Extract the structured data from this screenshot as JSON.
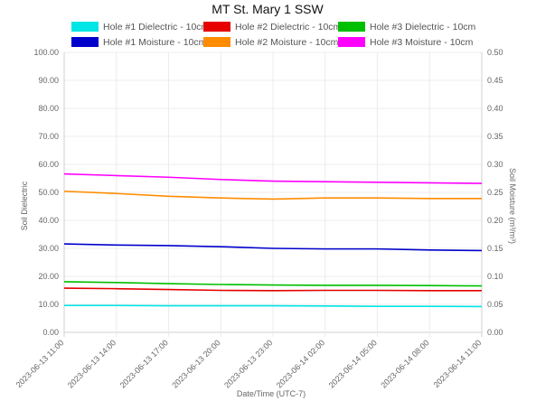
{
  "chart_data": {
    "type": "line",
    "title": "MT St. Mary 1 SSW",
    "xlabel": "Date/Time (UTC-7)",
    "ylabel": "Soil Dielectric",
    "y2label": "Soil Moisture (m³/m³)",
    "ylim": [
      0,
      100
    ],
    "y2lim": [
      0,
      0.5
    ],
    "y_ticks": [
      "0.00",
      "10.00",
      "20.00",
      "30.00",
      "40.00",
      "50.00",
      "60.00",
      "70.00",
      "80.00",
      "90.00",
      "100.00"
    ],
    "y2_ticks": [
      "0.00",
      "0.05",
      "0.10",
      "0.15",
      "0.20",
      "0.25",
      "0.30",
      "0.35",
      "0.40",
      "0.45",
      "0.50"
    ],
    "x_ticks": [
      "2023-06-13 11:00",
      "2023-06-13 14:00",
      "2023-06-13 17:00",
      "2023-06-13 20:00",
      "2023-06-13 23:00",
      "2023-06-14 02:00",
      "2023-06-14 05:00",
      "2023-06-14 08:00",
      "2023-06-14 11:00"
    ],
    "grid": true,
    "legend_position": "top",
    "series": [
      {
        "name": "Hole #1 Dielectric - 10cm",
        "color": "#00e5e5",
        "axis": "left",
        "values": [
          9.6,
          9.6,
          9.5,
          9.5,
          9.5,
          9.4,
          9.3,
          9.3,
          9.2
        ]
      },
      {
        "name": "Hole #2 Dielectric - 10cm",
        "color": "#e60000",
        "axis": "left",
        "values": [
          15.8,
          15.6,
          15.3,
          15.0,
          14.9,
          15.0,
          15.0,
          14.9,
          14.9
        ]
      },
      {
        "name": "Hole #3 Dielectric - 10cm",
        "color": "#00bf00",
        "axis": "left",
        "values": [
          18.1,
          17.8,
          17.4,
          17.1,
          16.9,
          16.8,
          16.8,
          16.7,
          16.6
        ]
      },
      {
        "name": "Hole #1 Moisture - 10cm",
        "color": "#0000cc",
        "axis": "right",
        "values": [
          0.158,
          0.156,
          0.155,
          0.153,
          0.15,
          0.149,
          0.149,
          0.147,
          0.146
        ]
      },
      {
        "name": "Hole #2 Moisture - 10cm",
        "color": "#ff8c00",
        "axis": "right",
        "values": [
          0.252,
          0.248,
          0.243,
          0.24,
          0.238,
          0.24,
          0.24,
          0.239,
          0.239
        ]
      },
      {
        "name": "Hole #3 Moisture - 10cm",
        "color": "#ff00ff",
        "axis": "right",
        "values": [
          0.283,
          0.28,
          0.277,
          0.273,
          0.27,
          0.269,
          0.268,
          0.267,
          0.266
        ]
      }
    ]
  }
}
